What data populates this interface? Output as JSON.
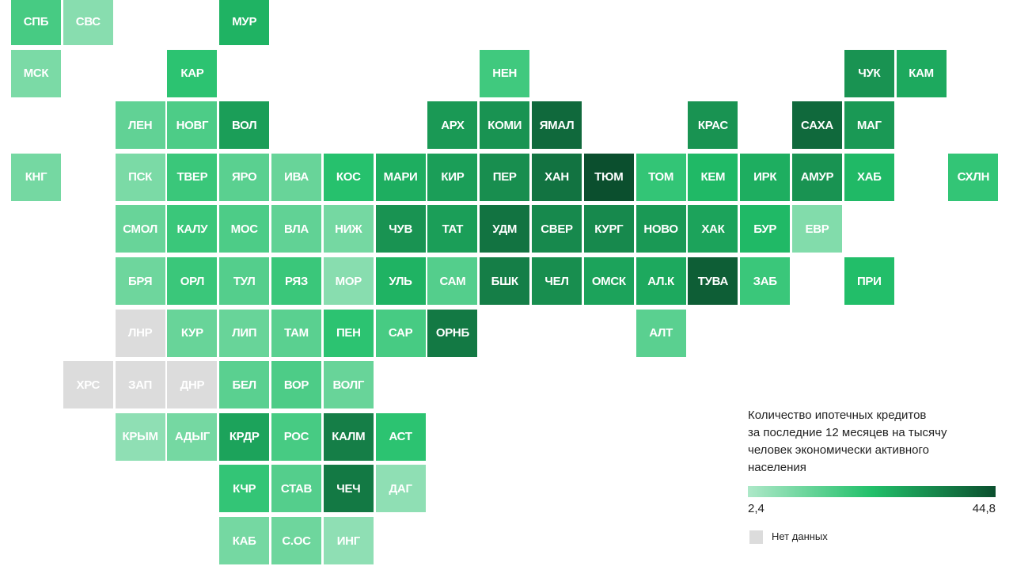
{
  "map": {
    "tiles": [
      {
        "label": "СПБ",
        "value": 18
      },
      {
        "label": "СВС",
        "value": 8
      },
      {
        "label": "МУР",
        "value": 26
      },
      {
        "label": "МСК",
        "value": 10
      },
      {
        "label": "КАР",
        "value": 22
      },
      {
        "label": "НЕН",
        "value": 19
      },
      {
        "label": "ЧУК",
        "value": 32
      },
      {
        "label": "КАМ",
        "value": 28
      },
      {
        "label": "ЛЕН",
        "value": 14
      },
      {
        "label": "НОВГ",
        "value": 17
      },
      {
        "label": "ВОЛ",
        "value": 30
      },
      {
        "label": "АРХ",
        "value": 31
      },
      {
        "label": "КОМИ",
        "value": 32
      },
      {
        "label": "ЯМАЛ",
        "value": 40
      },
      {
        "label": "КРАС",
        "value": 32
      },
      {
        "label": "САХА",
        "value": 40
      },
      {
        "label": "МАГ",
        "value": 31
      },
      {
        "label": "КНГ",
        "value": 11
      },
      {
        "label": "ПСК",
        "value": 10
      },
      {
        "label": "ТВЕР",
        "value": 20
      },
      {
        "label": "ЯРО",
        "value": 15
      },
      {
        "label": "ИВА",
        "value": 13
      },
      {
        "label": "КОС",
        "value": 23
      },
      {
        "label": "МАРИ",
        "value": 27
      },
      {
        "label": "КИР",
        "value": 30
      },
      {
        "label": "ПЕР",
        "value": 33
      },
      {
        "label": "ХАН",
        "value": 38
      },
      {
        "label": "ТЮМ",
        "value": 44.8
      },
      {
        "label": "ТОМ",
        "value": 21
      },
      {
        "label": "КЕМ",
        "value": 25
      },
      {
        "label": "ИРК",
        "value": 27
      },
      {
        "label": "АМУР",
        "value": 32
      },
      {
        "label": "ХАБ",
        "value": 25
      },
      {
        "label": "СХЛН",
        "value": 21
      },
      {
        "label": "СМОЛ",
        "value": 13
      },
      {
        "label": "КАЛУ",
        "value": 20
      },
      {
        "label": "МОС",
        "value": 17
      },
      {
        "label": "ВЛА",
        "value": 14
      },
      {
        "label": "НИЖ",
        "value": 11
      },
      {
        "label": "ЧУВ",
        "value": 32
      },
      {
        "label": "ТАТ",
        "value": 30
      },
      {
        "label": "УДМ",
        "value": 38
      },
      {
        "label": "СВЕР",
        "value": 34
      },
      {
        "label": "КУРГ",
        "value": 34
      },
      {
        "label": "НОВО",
        "value": 31
      },
      {
        "label": "ХАК",
        "value": 29
      },
      {
        "label": "БУР",
        "value": 25
      },
      {
        "label": "ЕВР",
        "value": 9
      },
      {
        "label": "БРЯ",
        "value": 12
      },
      {
        "label": "ОРЛ",
        "value": 20
      },
      {
        "label": "ТУЛ",
        "value": 16
      },
      {
        "label": "РЯЗ",
        "value": 20
      },
      {
        "label": "МОР",
        "value": 8
      },
      {
        "label": "УЛЬ",
        "value": 26
      },
      {
        "label": "САМ",
        "value": 16
      },
      {
        "label": "БШК",
        "value": 36
      },
      {
        "label": "ЧЕЛ",
        "value": 33
      },
      {
        "label": "ОМСК",
        "value": 29
      },
      {
        "label": "АЛ.К",
        "value": 28
      },
      {
        "label": "ТУВА",
        "value": 42
      },
      {
        "label": "ЗАБ",
        "value": 20
      },
      {
        "label": "ПРИ",
        "value": 24
      },
      {
        "label": "ЛНР",
        "value": null
      },
      {
        "label": "КУР",
        "value": 13
      },
      {
        "label": "ЛИП",
        "value": 13
      },
      {
        "label": "ТАМ",
        "value": 15
      },
      {
        "label": "ПЕН",
        "value": 22
      },
      {
        "label": "САР",
        "value": 18
      },
      {
        "label": "ОРНБ",
        "value": 37
      },
      {
        "label": "АЛТ",
        "value": 15
      },
      {
        "label": "ХРС",
        "value": null
      },
      {
        "label": "ЗАП",
        "value": null
      },
      {
        "label": "ДНР",
        "value": null
      },
      {
        "label": "БЕЛ",
        "value": 15
      },
      {
        "label": "ВОР",
        "value": 17
      },
      {
        "label": "ВОЛГ",
        "value": 13
      },
      {
        "label": "КРЫМ",
        "value": 7
      },
      {
        "label": "АДЫГ",
        "value": 11
      },
      {
        "label": "КРДР",
        "value": 29
      },
      {
        "label": "РОС",
        "value": 18
      },
      {
        "label": "КАЛМ",
        "value": 36
      },
      {
        "label": "АСТ",
        "value": 22
      },
      {
        "label": "КЧР",
        "value": 21
      },
      {
        "label": "СТАВ",
        "value": 16
      },
      {
        "label": "ЧЕЧ",
        "value": 37
      },
      {
        "label": "ДАГ",
        "value": 7
      },
      {
        "label": "КАБ",
        "value": 11
      },
      {
        "label": "С.ОС",
        "value": 12
      },
      {
        "label": "ИНГ",
        "value": 7
      }
    ],
    "legend": {
      "title_lines": [
        "Количество ипотечных кредитов",
        "за последние 12 месяцев на тысячу",
        "человек экономически активного",
        "населения"
      ],
      "min": {
        "value": 2.4,
        "label": "2,4"
      },
      "max": {
        "value": 44.8,
        "label": "44,8"
      },
      "colors": [
        "#ade8c8",
        "#22c06a",
        "#0b4f2e"
      ],
      "no_data_label": "Нет данных",
      "no_data_color": "#dcdcdc"
    }
  }
}
